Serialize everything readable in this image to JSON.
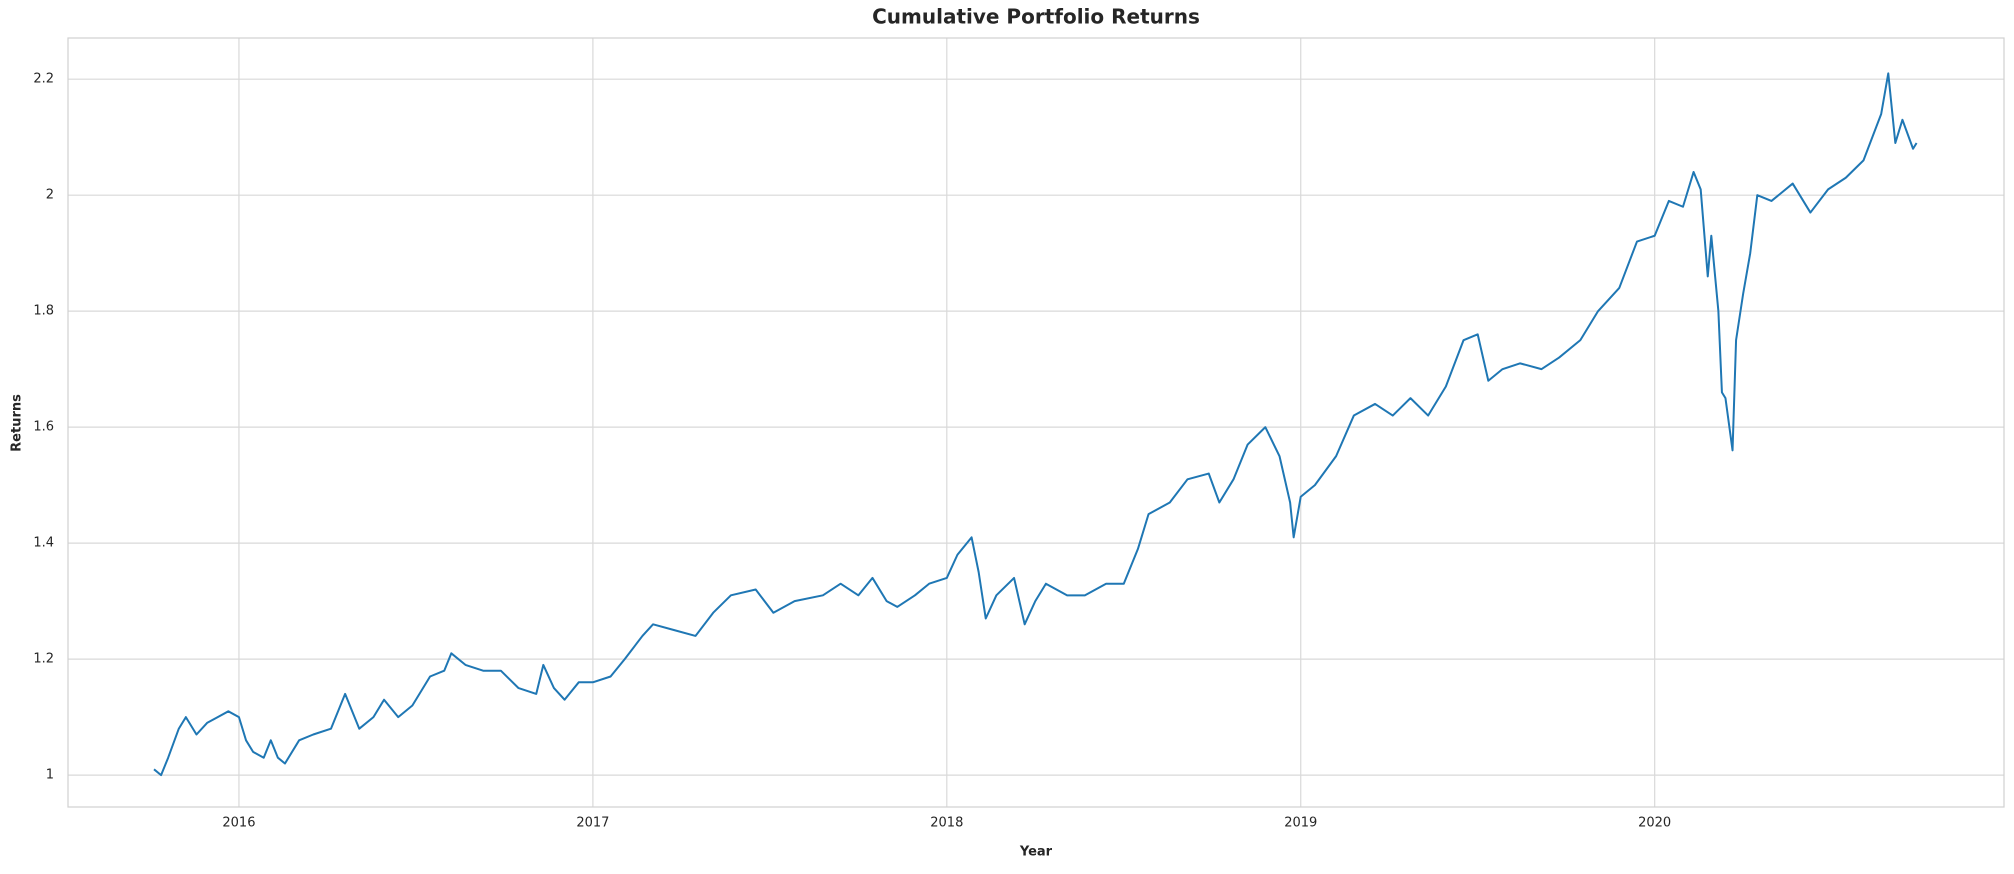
{
  "chart_data": {
    "type": "line",
    "title": "Cumulative Portfolio Returns",
    "x_label": "Year",
    "y_label": "Returns",
    "x": [
      2015.76,
      2015.78,
      2015.8,
      2015.83,
      2015.85,
      2015.88,
      2015.91,
      2015.94,
      2015.97,
      2016.0,
      2016.02,
      2016.04,
      2016.07,
      2016.09,
      2016.11,
      2016.13,
      2016.17,
      2016.21,
      2016.26,
      2016.3,
      2016.34,
      2016.38,
      2016.41,
      2016.45,
      2016.49,
      2016.54,
      2016.58,
      2016.6,
      2016.64,
      2016.69,
      2016.74,
      2016.79,
      2016.84,
      2016.86,
      2016.89,
      2016.92,
      2016.96,
      2017.0,
      2017.05,
      2017.09,
      2017.14,
      2017.17,
      2017.23,
      2017.29,
      2017.34,
      2017.39,
      2017.46,
      2017.51,
      2017.57,
      2017.65,
      2017.7,
      2017.75,
      2017.79,
      2017.83,
      2017.86,
      2017.91,
      2017.95,
      2018.0,
      2018.03,
      2018.07,
      2018.09,
      2018.11,
      2018.14,
      2018.19,
      2018.22,
      2018.25,
      2018.28,
      2018.34,
      2018.39,
      2018.45,
      2018.5,
      2018.54,
      2018.57,
      2018.63,
      2018.68,
      2018.74,
      2018.77,
      2018.81,
      2018.85,
      2018.9,
      2018.94,
      2018.97,
      2018.98,
      2019.0,
      2019.04,
      2019.1,
      2019.15,
      2019.21,
      2019.26,
      2019.31,
      2019.36,
      2019.41,
      2019.46,
      2019.5,
      2019.53,
      2019.57,
      2019.62,
      2019.68,
      2019.73,
      2019.79,
      2019.84,
      2019.9,
      2019.95,
      2020.0,
      2020.04,
      2020.08,
      2020.11,
      2020.13,
      2020.15,
      2020.16,
      2020.18,
      2020.19,
      2020.2,
      2020.22,
      2020.23,
      2020.25,
      2020.27,
      2020.29,
      2020.33,
      2020.39,
      2020.44,
      2020.49,
      2020.54,
      2020.59,
      2020.64,
      2020.66,
      2020.68,
      2020.7,
      2020.73,
      2020.74
    ],
    "series": [
      {
        "color": "#1f77b4",
        "values": [
          1.01,
          1.0,
          1.03,
          1.08,
          1.1,
          1.07,
          1.09,
          1.1,
          1.11,
          1.1,
          1.06,
          1.04,
          1.03,
          1.06,
          1.03,
          1.02,
          1.06,
          1.07,
          1.08,
          1.14,
          1.08,
          1.1,
          1.13,
          1.1,
          1.12,
          1.17,
          1.18,
          1.21,
          1.19,
          1.18,
          1.18,
          1.15,
          1.14,
          1.19,
          1.15,
          1.13,
          1.16,
          1.16,
          1.17,
          1.2,
          1.24,
          1.26,
          1.25,
          1.24,
          1.28,
          1.31,
          1.32,
          1.28,
          1.3,
          1.31,
          1.33,
          1.31,
          1.34,
          1.3,
          1.29,
          1.31,
          1.33,
          1.34,
          1.38,
          1.41,
          1.35,
          1.27,
          1.31,
          1.34,
          1.26,
          1.3,
          1.33,
          1.31,
          1.31,
          1.33,
          1.33,
          1.39,
          1.45,
          1.47,
          1.51,
          1.52,
          1.47,
          1.51,
          1.57,
          1.6,
          1.55,
          1.47,
          1.41,
          1.48,
          1.5,
          1.55,
          1.62,
          1.64,
          1.62,
          1.65,
          1.62,
          1.67,
          1.75,
          1.76,
          1.68,
          1.7,
          1.71,
          1.7,
          1.72,
          1.75,
          1.8,
          1.84,
          1.92,
          1.93,
          1.99,
          1.98,
          2.04,
          2.01,
          1.86,
          1.93,
          1.8,
          1.66,
          1.65,
          1.56,
          1.75,
          1.83,
          1.9,
          2.0,
          1.99,
          2.02,
          1.97,
          2.01,
          2.03,
          2.06,
          2.14,
          2.21,
          2.09,
          2.13,
          2.08,
          2.09
        ]
      }
    ],
    "xlim": [
      2015.517,
      2020.987
    ],
    "xticks": [
      2016,
      2017,
      2018,
      2019,
      2020
    ],
    "ylim": [
      0.945,
      2.271
    ],
    "yticks": [
      1.0,
      1.2,
      1.4,
      1.6,
      1.8,
      2.0,
      2.2
    ],
    "grid": true
  }
}
